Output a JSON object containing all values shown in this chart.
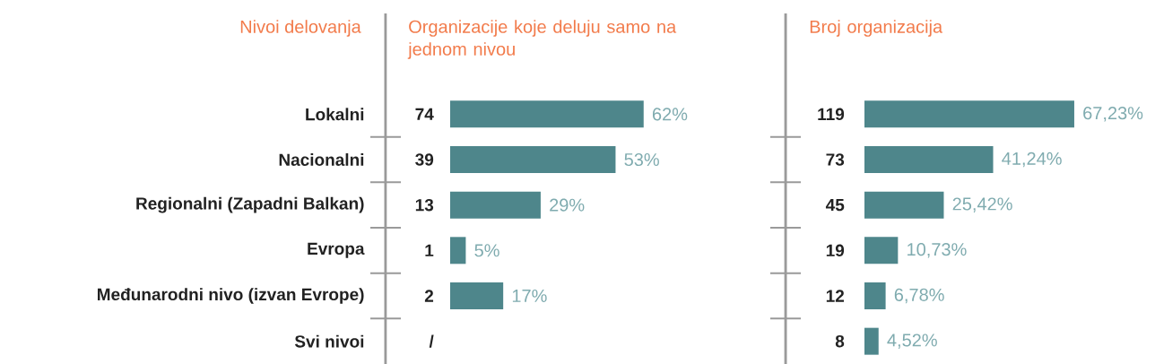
{
  "chart_data": [
    {
      "type": "bar",
      "orientation": "horizontal",
      "title": "Organizacije koje deluju samo na jednom nivou",
      "ylabel": "Nivoi delovanja",
      "categories": [
        "Lokalni",
        "Nacionalni",
        "Regionalni (Zapadni Balkan)",
        "Evropa",
        "Međunarodni nivo (izvan Evrope)",
        "Svi nivoi"
      ],
      "values": [
        62,
        53,
        29,
        5,
        17,
        null
      ],
      "color": "#4e868b",
      "value_labels": [
        "62%",
        "53%",
        "29%",
        "5%",
        "17%",
        null
      ],
      "annotations": [
        "74",
        "39",
        "13",
        "1",
        "2",
        "/"
      ]
    },
    {
      "type": "bar",
      "orientation": "horizontal",
      "title": "Broj organizacija",
      "categories": [
        null,
        null,
        null,
        null,
        null,
        null
      ],
      "values": [
        67.23,
        41.24,
        25.42,
        10.73,
        6.78,
        4.52
      ],
      "color": "#4e868b",
      "value_labels": [
        "67,23%",
        "41,24%",
        "25,42%",
        "10,73%",
        "6,78%",
        "4,52%"
      ],
      "annotations": [
        "119",
        "73",
        "45",
        "19",
        "12",
        "8"
      ]
    }
  ]
}
